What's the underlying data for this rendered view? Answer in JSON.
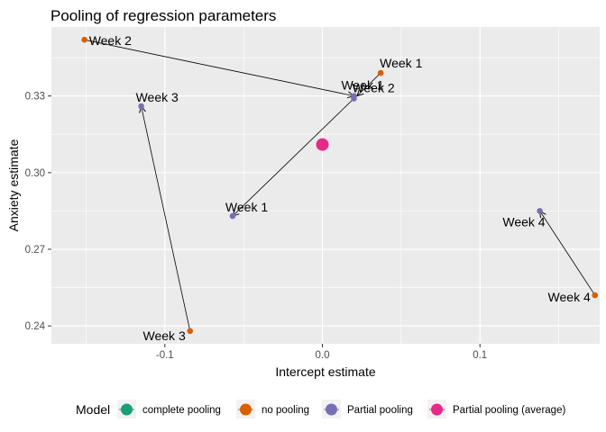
{
  "chart_data": {
    "type": "scatter",
    "title": "Pooling of regression parameters",
    "xlabel": "Intercept estimate",
    "ylabel": "Anxiety estimate",
    "xlim": [
      -0.172,
      0.176
    ],
    "ylim": [
      0.233,
      0.357
    ],
    "x_ticks": [
      -0.1,
      0.0,
      0.1
    ],
    "x_tick_labels": [
      "-0.1",
      "0.0",
      "0.1"
    ],
    "y_ticks": [
      0.24,
      0.27,
      0.3,
      0.33
    ],
    "y_tick_labels": [
      "0.24",
      "0.27",
      "0.30",
      "0.33"
    ],
    "grid": true,
    "legend": {
      "title": "Model",
      "position": "bottom",
      "entries": [
        {
          "label": "complete pooling",
          "color": "#1B9E77"
        },
        {
          "label": "no pooling",
          "color": "#D95F02"
        },
        {
          "label": "Partial pooling",
          "color": "#7570B3"
        },
        {
          "label": "Partial pooling (average)",
          "color": "#E7298A"
        }
      ]
    },
    "series": [
      {
        "name": "no pooling",
        "color": "#D95F02",
        "points": [
          {
            "x": 0.037,
            "y": 0.339,
            "label": "Week 1"
          },
          {
            "x": -0.151,
            "y": 0.352,
            "label": "Week 2"
          },
          {
            "x": -0.084,
            "y": 0.238,
            "label": "Week 3"
          },
          {
            "x": 0.173,
            "y": 0.252,
            "label": "Week 4"
          }
        ]
      },
      {
        "name": "Partial pooling",
        "color": "#7570B3",
        "points": [
          {
            "x": 0.02,
            "y": 0.329,
            "label": "Week 1"
          },
          {
            "x": -0.057,
            "y": 0.283,
            "label": "Week 1"
          },
          {
            "x": 0.02,
            "y": 0.33,
            "label": "Week 2"
          },
          {
            "x": -0.115,
            "y": 0.326,
            "label": "Week 3"
          },
          {
            "x": 0.138,
            "y": 0.285,
            "label": "Week 4"
          }
        ]
      },
      {
        "name": "Partial pooling (average)",
        "color": "#E7298A",
        "points": [
          {
            "x": 0.0,
            "y": 0.311
          }
        ]
      }
    ],
    "arrows": [
      {
        "from": [
          -0.151,
          0.352
        ],
        "to": [
          0.02,
          0.33
        ]
      },
      {
        "from": [
          0.037,
          0.339
        ],
        "to": [
          0.022,
          0.33
        ]
      },
      {
        "from": [
          0.02,
          0.329
        ],
        "to": [
          -0.057,
          0.283
        ]
      },
      {
        "from": [
          -0.084,
          0.238
        ],
        "to": [
          -0.115,
          0.326
        ]
      },
      {
        "from": [
          0.173,
          0.252
        ],
        "to": [
          0.138,
          0.285
        ]
      }
    ]
  }
}
